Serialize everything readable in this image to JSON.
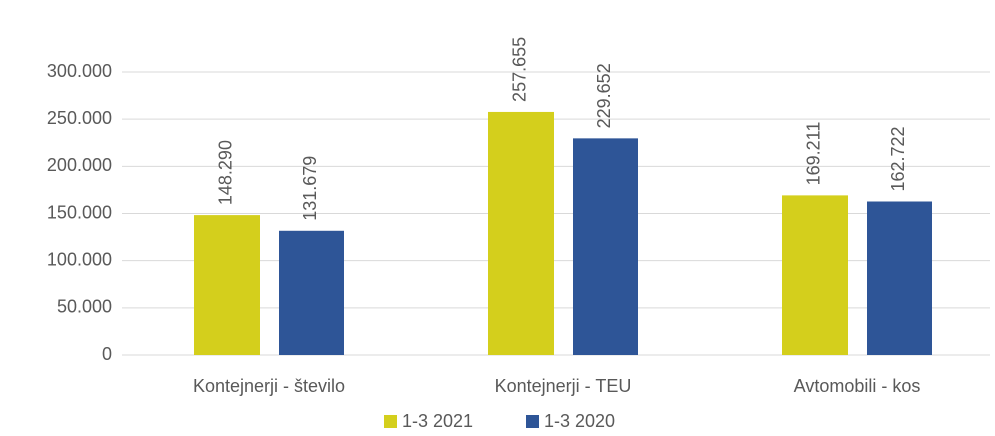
{
  "chart_data": {
    "type": "bar",
    "categories": [
      "Kontejnerji - število",
      "Kontejnerji - TEU",
      "Avtomobili - kos"
    ],
    "series": [
      {
        "name": "1-3 2021",
        "color": "#d4cf1c",
        "values": [
          148290,
          257655,
          169211
        ],
        "value_labels": [
          "148.290",
          "257.655",
          "169.211"
        ]
      },
      {
        "name": "1-3 2020",
        "color": "#2e5597",
        "values": [
          131679,
          229652,
          162722
        ],
        "value_labels": [
          "131.679",
          "229.652",
          "162.722"
        ]
      }
    ],
    "ylim": [
      0,
      300000
    ],
    "yticks": [
      0,
      {
        "value": 50000,
        "label": "50.000"
      },
      {
        "value": 100000,
        "label": "100.000"
      },
      {
        "value": 150000,
        "label": "150.000"
      },
      {
        "value": 200000,
        "label": "200.000"
      },
      {
        "value": 250000,
        "label": "250.000"
      },
      {
        "value": 300000,
        "label": "300.000"
      }
    ],
    "grid": true,
    "legend": "bottom"
  }
}
